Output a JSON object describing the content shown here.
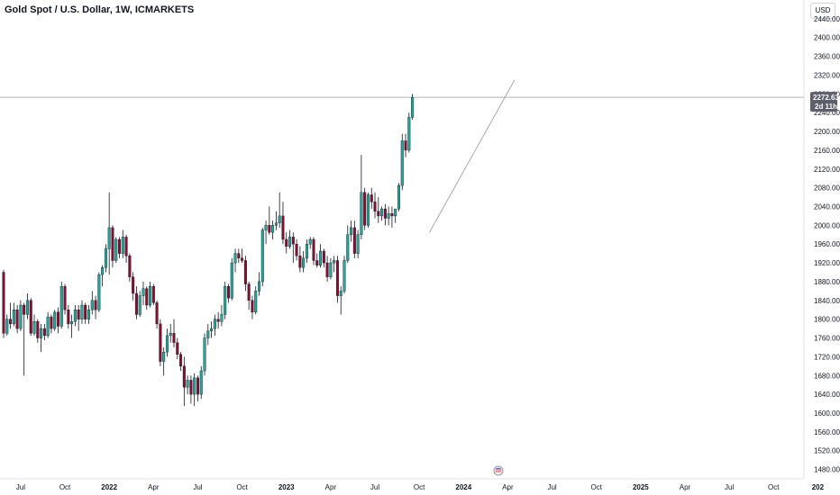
{
  "header": {
    "title": "Gold Spot / U.S. Dollar, 1W, ICMARKETS",
    "currency": "USD"
  },
  "price_tag": {
    "price": "2272.63",
    "countdown": "2d 11h"
  },
  "chart_data": {
    "type": "candlestick",
    "title": "Gold Spot / U.S. Dollar, 1W, ICMARKETS",
    "interval": "1W",
    "ylim": [
      1460,
      2480
    ],
    "y_ticks": [
      "2440.00",
      "2400.00",
      "2360.00",
      "2320.00",
      "2280.00",
      "2240.00",
      "2200.00",
      "2160.00",
      "2120.00",
      "2080.00",
      "2040.00",
      "2000.00",
      "1960.00",
      "1920.00",
      "1880.00",
      "1840.00",
      "1800.00",
      "1760.00",
      "1720.00",
      "1680.00",
      "1640.00",
      "1600.00",
      "1560.00",
      "1520.00",
      "1480.00"
    ],
    "x_ticks": [
      {
        "label": "Jul",
        "week": 5,
        "bold": false
      },
      {
        "label": "Oct",
        "week": 18,
        "bold": false
      },
      {
        "label": "2022",
        "week": 31,
        "bold": true
      },
      {
        "label": "Apr",
        "week": 44,
        "bold": false
      },
      {
        "label": "Jul",
        "week": 57,
        "bold": false
      },
      {
        "label": "Oct",
        "week": 70,
        "bold": false
      },
      {
        "label": "2023",
        "week": 83,
        "bold": true
      },
      {
        "label": "Apr",
        "week": 96,
        "bold": false
      },
      {
        "label": "Jul",
        "week": 109,
        "bold": false
      },
      {
        "label": "Oct",
        "week": 122,
        "bold": false
      },
      {
        "label": "2024",
        "week": 135,
        "bold": true
      },
      {
        "label": "Apr",
        "week": 148,
        "bold": false
      },
      {
        "label": "Jul",
        "week": 161,
        "bold": false
      },
      {
        "label": "Oct",
        "week": 174,
        "bold": false
      },
      {
        "label": "2025",
        "week": 187,
        "bold": true
      },
      {
        "label": "Apr",
        "week": 200,
        "bold": false
      },
      {
        "label": "Jul",
        "week": 213,
        "bold": false
      },
      {
        "label": "Oct",
        "week": 226,
        "bold": false
      },
      {
        "label": "202",
        "week": 239,
        "bold": true
      }
    ],
    "last_price": 2272.63,
    "trendline": [
      [
        125,
        1985
      ],
      [
        150,
        2310
      ]
    ],
    "colors": {
      "up": "#26a69a",
      "down": "#880e2f",
      "wick": "#131722",
      "price_tag": "#5d606b",
      "line": "#9598a1",
      "grid": "#e0e3eb"
    },
    "candles": [
      [
        1900,
        1905,
        1760,
        1770
      ],
      [
        1770,
        1810,
        1765,
        1800
      ],
      [
        1800,
        1835,
        1780,
        1790
      ],
      [
        1790,
        1835,
        1785,
        1820
      ],
      [
        1820,
        1830,
        1770,
        1780
      ],
      [
        1780,
        1840,
        1775,
        1830
      ],
      [
        1830,
        1835,
        1680,
        1810
      ],
      [
        1810,
        1855,
        1800,
        1840
      ],
      [
        1840,
        1845,
        1765,
        1770
      ],
      [
        1770,
        1810,
        1765,
        1795
      ],
      [
        1795,
        1800,
        1750,
        1760
      ],
      [
        1760,
        1790,
        1730,
        1780
      ],
      [
        1780,
        1790,
        1755,
        1765
      ],
      [
        1765,
        1815,
        1760,
        1805
      ],
      [
        1805,
        1810,
        1770,
        1780
      ],
      [
        1780,
        1820,
        1775,
        1815
      ],
      [
        1815,
        1825,
        1770,
        1785
      ],
      [
        1785,
        1880,
        1780,
        1870
      ],
      [
        1870,
        1875,
        1810,
        1820
      ],
      [
        1820,
        1830,
        1780,
        1790
      ],
      [
        1790,
        1810,
        1760,
        1795
      ],
      [
        1795,
        1830,
        1785,
        1820
      ],
      [
        1820,
        1830,
        1775,
        1800
      ],
      [
        1800,
        1840,
        1790,
        1830
      ],
      [
        1830,
        1835,
        1790,
        1800
      ],
      [
        1800,
        1830,
        1790,
        1820
      ],
      [
        1820,
        1860,
        1810,
        1840
      ],
      [
        1840,
        1850,
        1800,
        1820
      ],
      [
        1820,
        1900,
        1815,
        1895
      ],
      [
        1895,
        1915,
        1870,
        1910
      ],
      [
        1910,
        1960,
        1900,
        1950
      ],
      [
        1950,
        2070,
        1895,
        1995
      ],
      [
        1995,
        2000,
        1910,
        1925
      ],
      [
        1925,
        1975,
        1920,
        1970
      ],
      [
        1970,
        1975,
        1930,
        1940
      ],
      [
        1940,
        1990,
        1930,
        1975
      ],
      [
        1975,
        1980,
        1920,
        1935
      ],
      [
        1935,
        1940,
        1880,
        1890
      ],
      [
        1890,
        1900,
        1840,
        1855
      ],
      [
        1855,
        1870,
        1800,
        1810
      ],
      [
        1810,
        1860,
        1805,
        1850
      ],
      [
        1850,
        1880,
        1830,
        1865
      ],
      [
        1865,
        1870,
        1820,
        1830
      ],
      [
        1830,
        1880,
        1825,
        1870
      ],
      [
        1870,
        1875,
        1830,
        1835
      ],
      [
        1835,
        1840,
        1780,
        1790
      ],
      [
        1790,
        1800,
        1700,
        1710
      ],
      [
        1710,
        1740,
        1680,
        1730
      ],
      [
        1730,
        1780,
        1720,
        1765
      ],
      [
        1765,
        1790,
        1750,
        1770
      ],
      [
        1770,
        1800,
        1740,
        1750
      ],
      [
        1750,
        1760,
        1715,
        1725
      ],
      [
        1725,
        1730,
        1690,
        1700
      ],
      [
        1700,
        1720,
        1615,
        1655
      ],
      [
        1655,
        1680,
        1640,
        1670
      ],
      [
        1670,
        1680,
        1620,
        1640
      ],
      [
        1640,
        1685,
        1615,
        1675
      ],
      [
        1675,
        1680,
        1625,
        1640
      ],
      [
        1640,
        1700,
        1630,
        1690
      ],
      [
        1690,
        1770,
        1680,
        1760
      ],
      [
        1760,
        1790,
        1745,
        1775
      ],
      [
        1775,
        1795,
        1760,
        1780
      ],
      [
        1780,
        1810,
        1765,
        1800
      ],
      [
        1800,
        1815,
        1780,
        1795
      ],
      [
        1795,
        1830,
        1785,
        1810
      ],
      [
        1810,
        1880,
        1800,
        1870
      ],
      [
        1870,
        1875,
        1835,
        1845
      ],
      [
        1845,
        1930,
        1840,
        1920
      ],
      [
        1920,
        1950,
        1900,
        1940
      ],
      [
        1940,
        1950,
        1920,
        1930
      ],
      [
        1930,
        1950,
        1920,
        1925
      ],
      [
        1925,
        1935,
        1860,
        1875
      ],
      [
        1875,
        1880,
        1820,
        1840
      ],
      [
        1840,
        1850,
        1800,
        1815
      ],
      [
        1815,
        1870,
        1810,
        1860
      ],
      [
        1860,
        1900,
        1850,
        1880
      ],
      [
        1880,
        1995,
        1870,
        1990
      ],
      [
        1990,
        2010,
        1960,
        2000
      ],
      [
        2000,
        2040,
        1980,
        1985
      ],
      [
        1985,
        2010,
        1970,
        2000
      ],
      [
        2000,
        2030,
        1990,
        2005
      ],
      [
        2005,
        2070,
        1995,
        2020
      ],
      [
        2020,
        2050,
        1960,
        1970
      ],
      [
        1970,
        1985,
        1940,
        1955
      ],
      [
        1955,
        1990,
        1950,
        1975
      ],
      [
        1975,
        1985,
        1920,
        1960
      ],
      [
        1960,
        1970,
        1925,
        1935
      ],
      [
        1935,
        1955,
        1900,
        1910
      ],
      [
        1910,
        1945,
        1900,
        1930
      ],
      [
        1930,
        1970,
        1920,
        1960
      ],
      [
        1960,
        1975,
        1950,
        1970
      ],
      [
        1970,
        1975,
        1915,
        1925
      ],
      [
        1925,
        1940,
        1910,
        1915
      ],
      [
        1915,
        1960,
        1910,
        1945
      ],
      [
        1945,
        1950,
        1910,
        1920
      ],
      [
        1920,
        1935,
        1880,
        1890
      ],
      [
        1890,
        1930,
        1885,
        1920
      ],
      [
        1920,
        1935,
        1900,
        1925
      ],
      [
        1925,
        1935,
        1835,
        1850
      ],
      [
        1850,
        1870,
        1810,
        1860
      ],
      [
        1860,
        1935,
        1855,
        1925
      ],
      [
        1925,
        2000,
        1920,
        1980
      ],
      [
        1980,
        2010,
        1965,
        1995
      ],
      [
        1995,
        2010,
        1930,
        1940
      ],
      [
        1940,
        1990,
        1930,
        1980
      ],
      [
        1980,
        2150,
        1970,
        2070
      ],
      [
        2070,
        2080,
        1990,
        2000
      ],
      [
        2000,
        2070,
        1995,
        2065
      ],
      [
        2065,
        2080,
        2035,
        2050
      ],
      [
        2050,
        2070,
        2015,
        2030
      ],
      [
        2030,
        2060,
        2005,
        2020
      ],
      [
        2020,
        2040,
        2010,
        2035
      ],
      [
        2035,
        2045,
        2000,
        2015
      ],
      [
        2015,
        2040,
        2000,
        2025
      ],
      [
        2025,
        2040,
        1995,
        2020
      ],
      [
        2020,
        2035,
        2005,
        2035
      ],
      [
        2035,
        2090,
        2030,
        2085
      ],
      [
        2085,
        2195,
        2075,
        2180
      ],
      [
        2180,
        2195,
        2145,
        2160
      ],
      [
        2160,
        2240,
        2155,
        2230
      ],
      [
        2230,
        2280,
        2225,
        2272.63
      ]
    ]
  }
}
